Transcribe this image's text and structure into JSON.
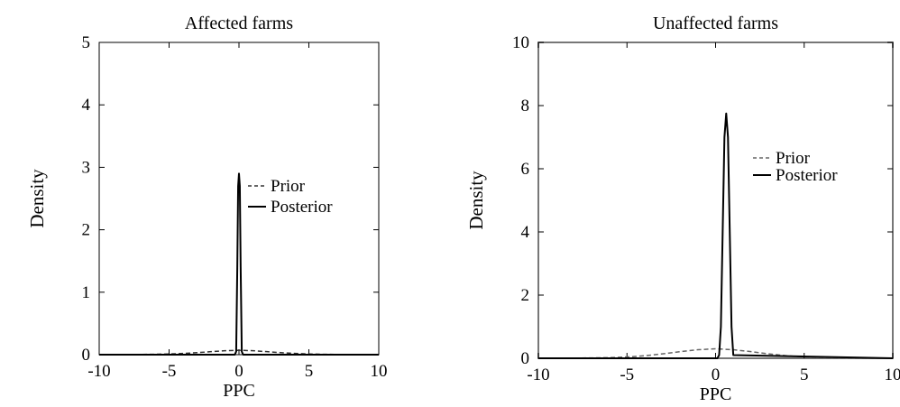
{
  "chart_data": [
    {
      "type": "line",
      "title": "Affected farms",
      "xlabel": "PPC",
      "ylabel": "Density",
      "xlim": [
        -10,
        10
      ],
      "ylim": [
        0,
        5
      ],
      "xticks": [
        "-10",
        "-5",
        "0",
        "5",
        "10"
      ],
      "yticks": [
        "0",
        "1",
        "2",
        "3",
        "4",
        "5"
      ],
      "legend_position": "center-right",
      "series": [
        {
          "name": "Prior",
          "style": "dashed",
          "color": "#333333",
          "x": [
            -10,
            -8,
            -6,
            -5,
            -4,
            -3,
            -2,
            -1,
            0,
            1,
            2,
            3,
            4,
            5,
            6,
            8,
            10
          ],
          "y": [
            0.0,
            0.001,
            0.006,
            0.011,
            0.02,
            0.032,
            0.048,
            0.063,
            0.07,
            0.063,
            0.048,
            0.032,
            0.02,
            0.011,
            0.006,
            0.001,
            0.0
          ]
        },
        {
          "name": "Posterior",
          "style": "solid",
          "color": "#000000",
          "x": [
            -10,
            -0.3,
            -0.2,
            -0.12,
            -0.06,
            0.0,
            0.06,
            0.12,
            0.2,
            0.3,
            10
          ],
          "y": [
            0,
            0,
            0.05,
            1.4,
            2.7,
            2.9,
            2.7,
            1.4,
            0.05,
            0,
            0
          ]
        }
      ]
    },
    {
      "type": "line",
      "title": "Unaffected farms",
      "xlabel": "PPC",
      "ylabel": "Density",
      "xlim": [
        -10,
        10
      ],
      "ylim": [
        0,
        10
      ],
      "xticks": [
        "-10",
        "-5",
        "0",
        "5",
        "10"
      ],
      "yticks": [
        "0",
        "2",
        "4",
        "6",
        "8",
        "10"
      ],
      "legend_position": "center-right",
      "series": [
        {
          "name": "Prior",
          "style": "dashed",
          "color": "#666666",
          "x": [
            -10,
            -8,
            -6,
            -5,
            -4,
            -3,
            -2,
            -1,
            0,
            1,
            2,
            3,
            4,
            5,
            6,
            8,
            10
          ],
          "y": [
            0.0,
            0.003,
            0.02,
            0.04,
            0.08,
            0.14,
            0.21,
            0.27,
            0.3,
            0.27,
            0.21,
            0.14,
            0.08,
            0.04,
            0.02,
            0.003,
            0.0
          ]
        },
        {
          "name": "Posterior",
          "style": "solid",
          "color": "#000000",
          "x": [
            -10,
            0.1,
            0.2,
            0.3,
            0.4,
            0.5,
            0.6,
            0.7,
            0.8,
            0.9,
            1.0,
            10
          ],
          "y": [
            0,
            0,
            0.1,
            1.0,
            4.0,
            7.0,
            7.75,
            7.0,
            4.0,
            1.0,
            0.1,
            0
          ]
        }
      ]
    }
  ]
}
